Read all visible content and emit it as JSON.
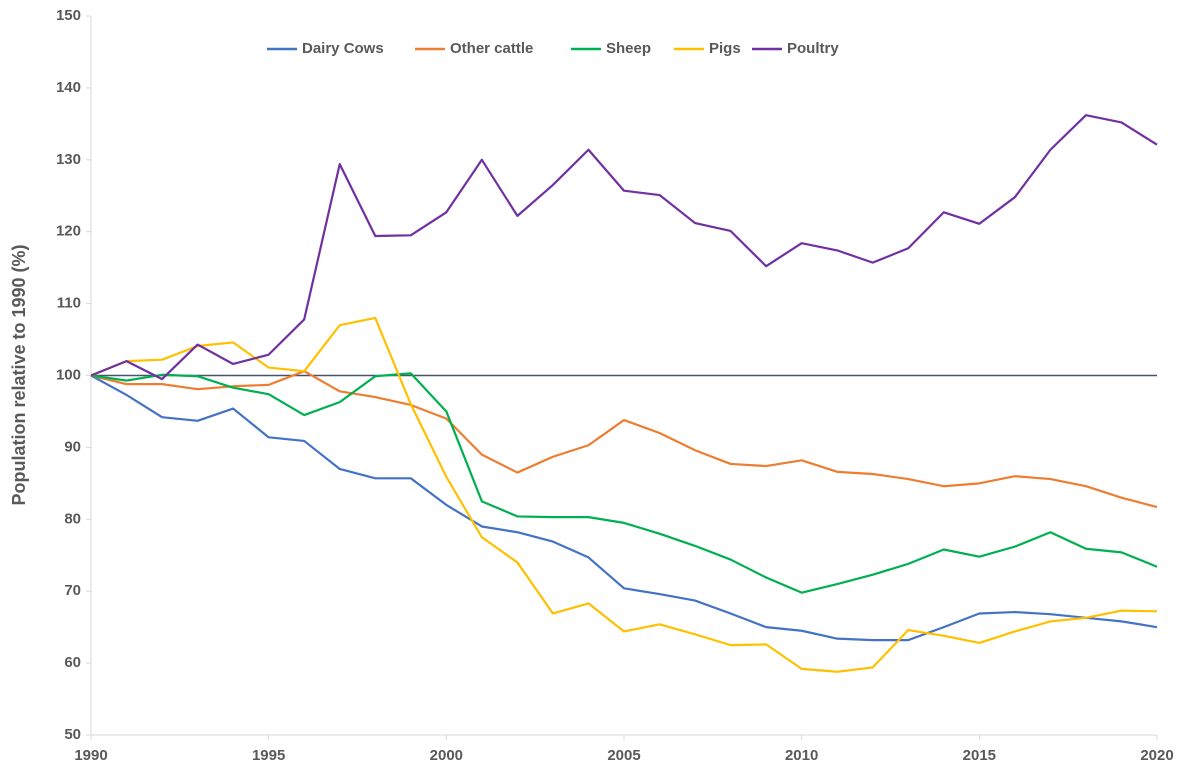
{
  "chart_data": {
    "type": "line",
    "y_label": "Population relative to 1990 (%)",
    "x": [
      1990,
      1991,
      1992,
      1993,
      1994,
      1995,
      1996,
      1997,
      1998,
      1999,
      2000,
      2001,
      2002,
      2003,
      2004,
      2005,
      2006,
      2007,
      2008,
      2009,
      2010,
      2011,
      2012,
      2013,
      2014,
      2015,
      2016,
      2017,
      2018,
      2019,
      2020
    ],
    "series": [
      {
        "name": "Dairy Cows",
        "color": "#4472c4",
        "values": [
          100,
          97.3,
          94.2,
          93.7,
          95.4,
          91.4,
          90.9,
          87.0,
          85.7,
          85.7,
          82.0,
          79.0,
          78.2,
          76.9,
          74.7,
          70.4,
          69.6,
          68.7,
          66.9,
          65.0,
          64.5,
          63.4,
          63.2,
          63.2,
          65.0,
          66.9,
          67.1,
          66.8,
          66.3,
          65.8,
          65.0
        ]
      },
      {
        "name": "Other cattle",
        "color": "#ed7d31",
        "values": [
          100,
          98.8,
          98.8,
          98.1,
          98.5,
          98.7,
          100.6,
          97.8,
          97.0,
          95.9,
          94.0,
          89.0,
          86.5,
          88.7,
          90.3,
          93.8,
          92.0,
          89.6,
          87.7,
          87.4,
          88.2,
          86.6,
          86.3,
          85.6,
          84.6,
          85.0,
          86.0,
          85.6,
          84.6,
          83.0,
          81.7
        ]
      },
      {
        "name": "Sheep",
        "color": "#00b050",
        "values": [
          100,
          99.3,
          100.1,
          99.9,
          98.3,
          97.4,
          94.5,
          96.3,
          99.9,
          100.3,
          95.0,
          82.5,
          80.4,
          80.3,
          80.3,
          79.5,
          78.0,
          76.3,
          74.4,
          71.9,
          69.8,
          71.0,
          72.3,
          73.8,
          75.8,
          74.8,
          76.2,
          78.2,
          75.9,
          75.4,
          73.4
        ]
      },
      {
        "name": "Pigs",
        "color": "#ffc000",
        "values": [
          100,
          102.0,
          102.2,
          104.1,
          104.6,
          101.1,
          100.6,
          107.0,
          108.0,
          96.0,
          85.9,
          77.5,
          74.0,
          66.9,
          68.3,
          64.4,
          65.4,
          64.0,
          62.5,
          62.6,
          59.2,
          58.8,
          59.4,
          64.6,
          63.8,
          62.8,
          64.4,
          65.8,
          66.3,
          67.3,
          67.2
        ]
      },
      {
        "name": "Poultry",
        "color": "#7030a0",
        "values": [
          100,
          102.0,
          99.5,
          104.3,
          101.6,
          102.9,
          107.8,
          129.4,
          119.4,
          119.5,
          122.7,
          130.0,
          122.2,
          126.5,
          131.4,
          125.7,
          125.1,
          121.2,
          120.1,
          115.2,
          118.4,
          117.4,
          115.7,
          117.7,
          122.7,
          121.1,
          124.8,
          131.4,
          136.2,
          135.2,
          132.1
        ]
      }
    ],
    "xlim": [
      1990,
      2020
    ],
    "xticks": [
      1990,
      1995,
      2000,
      2005,
      2010,
      2015,
      2020
    ],
    "ylim": [
      50,
      150
    ],
    "yticks": [
      50,
      60,
      70,
      80,
      90,
      100,
      110,
      120,
      130,
      140,
      150
    ],
    "reference_line": 100,
    "grid": false,
    "legend": "top"
  }
}
